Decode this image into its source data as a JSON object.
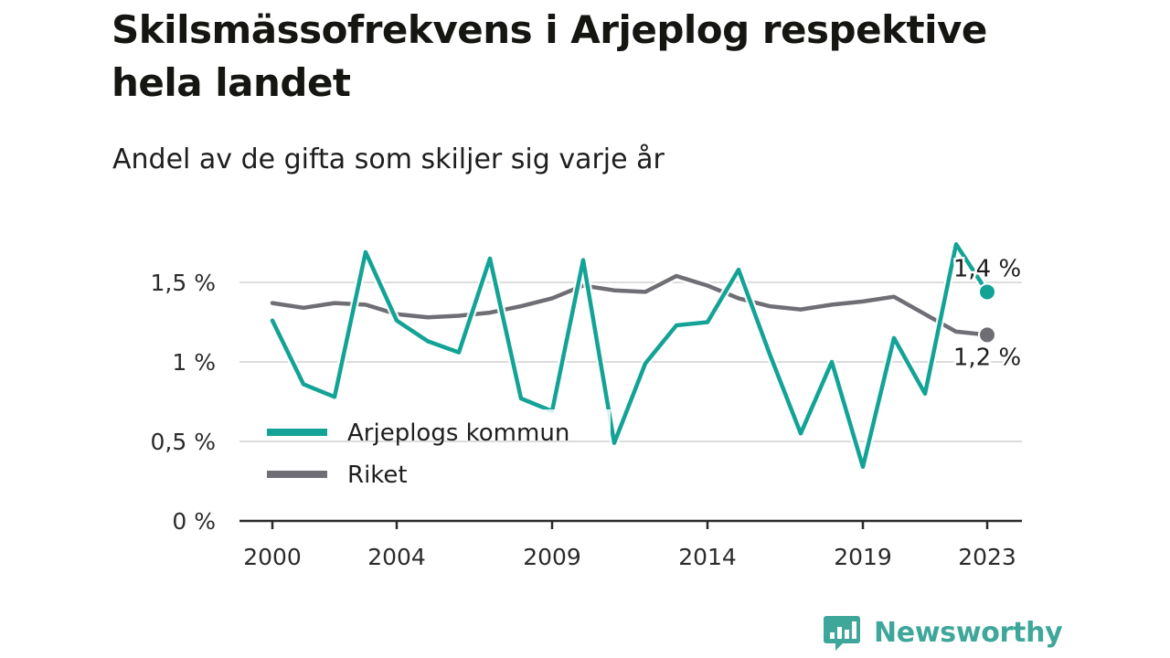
{
  "title": "Skilsmässofrekvens i Arjeplog respektive hela landet",
  "subtitle": "Andel av de gifta som skiljer sig varje år",
  "brand": {
    "name": "Newsworthy",
    "icon": "bar-chart-speech-bubble-icon",
    "color": "#3fa79a"
  },
  "chart_data": {
    "type": "line",
    "x": [
      2000,
      2001,
      2002,
      2003,
      2004,
      2005,
      2006,
      2007,
      2008,
      2009,
      2010,
      2011,
      2012,
      2013,
      2014,
      2015,
      2016,
      2017,
      2018,
      2019,
      2020,
      2021,
      2022,
      2023
    ],
    "x_tick_values": [
      2000,
      2004,
      2009,
      2014,
      2019,
      2023
    ],
    "x_tick_labels": [
      "2000",
      "2004",
      "2009",
      "2014",
      "2019",
      "2023"
    ],
    "y_ticks": [
      0,
      0.5,
      1,
      1.5
    ],
    "y_tick_labels": [
      "0 %",
      "0,5 %",
      "1 %",
      "1,5 %"
    ],
    "ylim": [
      0,
      1.75
    ],
    "xlim": [
      2000,
      2023
    ],
    "grid": "horizontal",
    "legend_position": "lower-left",
    "series": [
      {
        "name": "Arjeplogs kommun",
        "color": "#13a396",
        "values": [
          1.26,
          0.86,
          0.78,
          1.69,
          1.26,
          1.13,
          1.06,
          1.65,
          0.77,
          0.69,
          1.64,
          0.49,
          0.99,
          1.23,
          1.25,
          1.58,
          1.05,
          0.55,
          1.0,
          0.34,
          1.15,
          0.8,
          1.74,
          1.44
        ],
        "end_label": "1,4 %"
      },
      {
        "name": "Riket",
        "color": "#706e75",
        "values": [
          1.37,
          1.34,
          1.37,
          1.36,
          1.3,
          1.28,
          1.29,
          1.31,
          1.35,
          1.4,
          1.48,
          1.45,
          1.44,
          1.54,
          1.48,
          1.4,
          1.35,
          1.33,
          1.36,
          1.38,
          1.41,
          1.3,
          1.19,
          1.17
        ],
        "end_label": "1,2 %"
      }
    ]
  }
}
